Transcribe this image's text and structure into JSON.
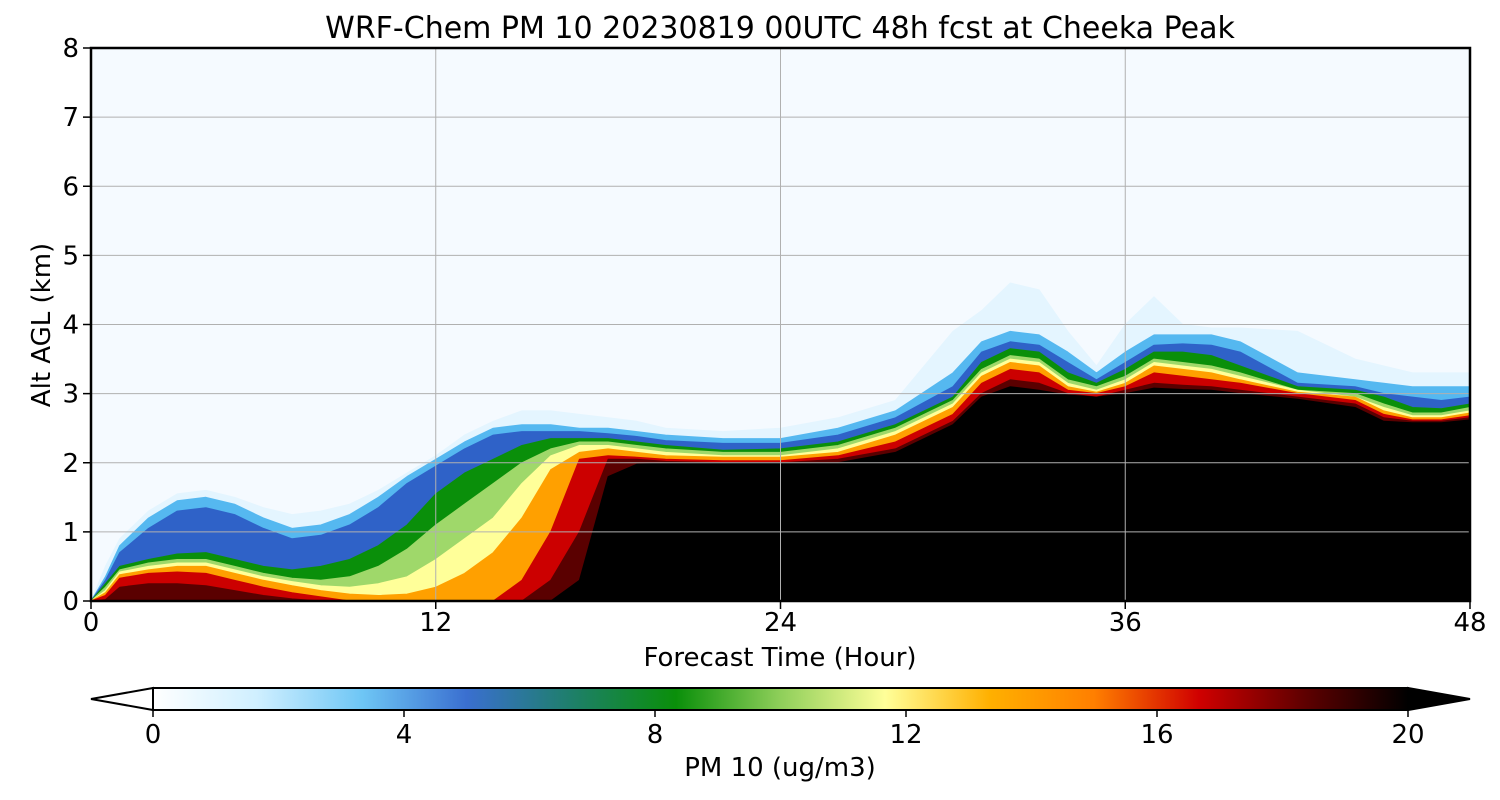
{
  "chart_data": {
    "type": "heatmap",
    "title": "WRF-Chem PM 10  20230819 00UTC 48h fcst at Cheeka Peak",
    "xlabel": "Forecast Time (Hour)",
    "ylabel": "Alt AGL (km)",
    "xlim": [
      0,
      48
    ],
    "ylim": [
      0,
      8
    ],
    "x_ticks": [
      0,
      12,
      24,
      36,
      48
    ],
    "y_ticks": [
      0,
      1,
      2,
      3,
      4,
      5,
      6,
      7,
      8
    ],
    "grid": true,
    "colorbar": {
      "label": "PM 10  (ug/m3)",
      "range": [
        0,
        20
      ],
      "ticks": [
        0,
        4,
        8,
        12,
        16,
        20
      ],
      "extend": "both",
      "orientation": "horizontal",
      "colors": [
        "#ffffff",
        "#cfefff",
        "#6ec6f5",
        "#3a6fd0",
        "#1e7f6a",
        "#0a8f0a",
        "#8fcf5a",
        "#ffff99",
        "#ffb000",
        "#ff7f00",
        "#d00000",
        "#600000",
        "#000000"
      ]
    },
    "background_color": "#f5faff",
    "x_hours": [
      0,
      0.5,
      1,
      2,
      3,
      4,
      5,
      6,
      7,
      8,
      9,
      10,
      11,
      12,
      13,
      14,
      15,
      16,
      17,
      18,
      19,
      20,
      22,
      24,
      26,
      28,
      30,
      31,
      32,
      33,
      34,
      35,
      36,
      37,
      38,
      39,
      40,
      42,
      44,
      45,
      46,
      47,
      48
    ],
    "layers": [
      {
        "min_value": 1,
        "color": "#e4f5ff",
        "top_km": [
          0,
          0.5,
          0.9,
          1.3,
          1.55,
          1.6,
          1.5,
          1.35,
          1.25,
          1.3,
          1.4,
          1.6,
          1.85,
          2.1,
          2.4,
          2.6,
          2.75,
          2.75,
          2.7,
          2.65,
          2.6,
          2.5,
          2.45,
          2.5,
          2.65,
          2.9,
          3.9,
          4.2,
          4.6,
          4.5,
          3.9,
          3.4,
          4.0,
          4.4,
          4.0,
          3.95,
          3.95,
          3.9,
          3.5,
          3.4,
          3.3,
          3.3,
          3.3
        ]
      },
      {
        "min_value": 3,
        "color": "#55b8f0",
        "top_km": [
          0,
          0.35,
          0.8,
          1.2,
          1.45,
          1.5,
          1.4,
          1.2,
          1.05,
          1.1,
          1.25,
          1.5,
          1.8,
          2.05,
          2.3,
          2.5,
          2.55,
          2.55,
          2.5,
          2.5,
          2.45,
          2.4,
          2.35,
          2.35,
          2.5,
          2.75,
          3.3,
          3.75,
          3.9,
          3.85,
          3.6,
          3.3,
          3.6,
          3.85,
          3.85,
          3.85,
          3.75,
          3.3,
          3.2,
          3.15,
          3.1,
          3.1,
          3.1
        ]
      },
      {
        "min_value": 5,
        "color": "#2f62c8",
        "top_km": [
          0,
          0.3,
          0.7,
          1.05,
          1.3,
          1.35,
          1.25,
          1.05,
          0.9,
          0.95,
          1.1,
          1.35,
          1.7,
          1.95,
          2.2,
          2.4,
          2.45,
          2.45,
          2.45,
          2.42,
          2.38,
          2.32,
          2.28,
          2.28,
          2.4,
          2.65,
          3.1,
          3.6,
          3.75,
          3.7,
          3.45,
          3.2,
          3.45,
          3.7,
          3.72,
          3.7,
          3.6,
          3.15,
          3.1,
          3.0,
          2.95,
          2.9,
          2.95
        ]
      },
      {
        "min_value": 7,
        "color": "#0a8f0a",
        "top_km": [
          0,
          0.25,
          0.5,
          0.6,
          0.68,
          0.7,
          0.6,
          0.5,
          0.45,
          0.5,
          0.6,
          0.8,
          1.1,
          1.55,
          1.85,
          2.05,
          2.25,
          2.35,
          2.35,
          2.35,
          2.3,
          2.25,
          2.18,
          2.2,
          2.3,
          2.55,
          2.95,
          3.45,
          3.65,
          3.6,
          3.3,
          3.15,
          3.35,
          3.6,
          3.6,
          3.55,
          3.4,
          3.1,
          3.05,
          2.95,
          2.8,
          2.78,
          2.85
        ]
      },
      {
        "min_value": 9,
        "color": "#9fd86a",
        "top_km": [
          0,
          0.2,
          0.45,
          0.55,
          0.6,
          0.6,
          0.5,
          0.4,
          0.33,
          0.3,
          0.35,
          0.5,
          0.75,
          1.1,
          1.4,
          1.7,
          2.0,
          2.2,
          2.3,
          2.3,
          2.25,
          2.2,
          2.15,
          2.15,
          2.25,
          2.5,
          2.9,
          3.35,
          3.55,
          3.5,
          3.2,
          3.1,
          3.25,
          3.5,
          3.45,
          3.4,
          3.3,
          3.05,
          3.0,
          2.85,
          2.72,
          2.72,
          2.8
        ]
      },
      {
        "min_value": 10,
        "color": "#ffff99",
        "top_km": [
          0,
          0.15,
          0.42,
          0.5,
          0.55,
          0.55,
          0.45,
          0.35,
          0.28,
          0.22,
          0.2,
          0.25,
          0.35,
          0.6,
          0.9,
          1.2,
          1.7,
          2.1,
          2.25,
          2.25,
          2.2,
          2.15,
          2.1,
          2.1,
          2.2,
          2.45,
          2.85,
          3.3,
          3.5,
          3.45,
          3.15,
          3.05,
          3.2,
          3.45,
          3.4,
          3.35,
          3.25,
          3.05,
          2.95,
          2.8,
          2.68,
          2.68,
          2.75
        ]
      },
      {
        "min_value": 12,
        "color": "#ffa000",
        "top_km": [
          0,
          0.12,
          0.38,
          0.45,
          0.5,
          0.5,
          0.4,
          0.3,
          0.22,
          0.15,
          0.1,
          0.08,
          0.1,
          0.2,
          0.4,
          0.7,
          1.2,
          1.9,
          2.15,
          2.2,
          2.15,
          2.1,
          2.08,
          2.08,
          2.15,
          2.4,
          2.8,
          3.25,
          3.45,
          3.4,
          3.1,
          3.02,
          3.15,
          3.4,
          3.35,
          3.3,
          3.2,
          3.02,
          2.95,
          2.75,
          2.65,
          2.65,
          2.72
        ]
      },
      {
        "min_value": 15,
        "color": "#cc0000",
        "top_km": [
          0,
          0.08,
          0.33,
          0.4,
          0.42,
          0.4,
          0.3,
          0.2,
          0.12,
          0.06,
          0.0,
          0.0,
          0.0,
          0.0,
          0.0,
          0.0,
          0.3,
          1.0,
          2.05,
          2.1,
          2.08,
          2.05,
          2.03,
          2.03,
          2.1,
          2.3,
          2.7,
          3.15,
          3.35,
          3.3,
          3.05,
          3.0,
          3.1,
          3.3,
          3.25,
          3.2,
          3.15,
          3.0,
          2.9,
          2.7,
          2.62,
          2.62,
          2.68
        ]
      },
      {
        "min_value": 18,
        "color": "#5a0000",
        "top_km": [
          0,
          0.02,
          0.2,
          0.25,
          0.25,
          0.22,
          0.15,
          0.08,
          0.03,
          0.0,
          0.0,
          0.0,
          0.0,
          0.0,
          0.0,
          0.0,
          0.0,
          0.3,
          1.0,
          2.05,
          2.05,
          2.02,
          2.0,
          2.0,
          2.05,
          2.2,
          2.6,
          3.0,
          3.2,
          3.15,
          3.0,
          2.95,
          3.05,
          3.15,
          3.12,
          3.1,
          3.05,
          2.95,
          2.85,
          2.65,
          2.6,
          2.6,
          2.65
        ]
      },
      {
        "min_value": 20,
        "color": "#000000",
        "top_km": [
          0,
          0.0,
          0.0,
          0.0,
          0.0,
          0.0,
          0.0,
          0.0,
          0.0,
          0.0,
          0.0,
          0.0,
          0.0,
          0.0,
          0.0,
          0.0,
          0.0,
          0.0,
          0.3,
          1.8,
          1.98,
          2.0,
          2.0,
          2.0,
          2.0,
          2.15,
          2.55,
          2.95,
          3.1,
          3.05,
          2.98,
          2.95,
          3.0,
          3.08,
          3.06,
          3.05,
          3.0,
          2.92,
          2.8,
          2.6,
          2.58,
          2.58,
          2.62
        ]
      }
    ]
  }
}
